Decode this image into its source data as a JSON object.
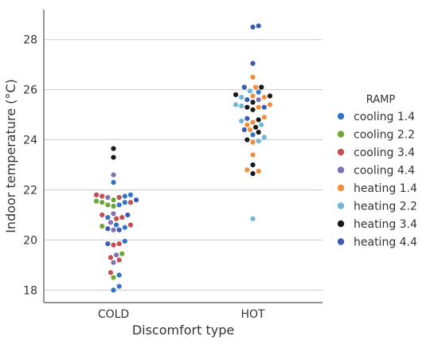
{
  "chart_data": {
    "type": "scatter",
    "subtype": "swarm",
    "title": "",
    "xlabel": "Discomfort type",
    "ylabel": "Indoor temperature (°C)",
    "categories": [
      "COLD",
      "HOT"
    ],
    "ylim": [
      17.5,
      29.2
    ],
    "yticks": [
      18,
      20,
      22,
      24,
      26,
      28
    ],
    "grid": "horizontal",
    "legend": {
      "title": "RAMP",
      "placement": "right"
    },
    "series": [
      {
        "name": "cooling 1.4",
        "color": "#3274c7",
        "points": [
          {
            "x": "COLD",
            "y": 21.8
          },
          {
            "x": "COLD",
            "y": 21.75
          },
          {
            "x": "COLD",
            "y": 21.5
          },
          {
            "x": "COLD",
            "y": 21.4
          },
          {
            "x": "COLD",
            "y": 20.9
          },
          {
            "x": "COLD",
            "y": 20.6
          },
          {
            "x": "COLD",
            "y": 20.5
          },
          {
            "x": "COLD",
            "y": 19.95
          },
          {
            "x": "COLD",
            "y": 18.6
          },
          {
            "x": "COLD",
            "y": 18.15
          },
          {
            "x": "COLD",
            "y": 18.0
          },
          {
            "x": "COLD",
            "y": 22.3
          },
          {
            "x": "HOT",
            "y": 25.9
          },
          {
            "x": "HOT",
            "y": 24.2
          }
        ]
      },
      {
        "name": "cooling 2.2",
        "color": "#6fa535",
        "points": [
          {
            "x": "COLD",
            "y": 21.6
          },
          {
            "x": "COLD",
            "y": 21.55
          },
          {
            "x": "COLD",
            "y": 21.5
          },
          {
            "x": "COLD",
            "y": 21.4
          },
          {
            "x": "COLD",
            "y": 21.35
          },
          {
            "x": "COLD",
            "y": 20.55
          },
          {
            "x": "COLD",
            "y": 19.45
          },
          {
            "x": "COLD",
            "y": 18.5
          }
        ]
      },
      {
        "name": "cooling 3.4",
        "color": "#c44e52",
        "points": [
          {
            "x": "COLD",
            "y": 21.8
          },
          {
            "x": "COLD",
            "y": 21.75
          },
          {
            "x": "COLD",
            "y": 21.7
          },
          {
            "x": "COLD",
            "y": 21.5
          },
          {
            "x": "COLD",
            "y": 21.0
          },
          {
            "x": "COLD",
            "y": 20.9
          },
          {
            "x": "COLD",
            "y": 20.85
          },
          {
            "x": "COLD",
            "y": 20.6
          },
          {
            "x": "COLD",
            "y": 19.85
          },
          {
            "x": "COLD",
            "y": 19.8
          },
          {
            "x": "COLD",
            "y": 19.3
          },
          {
            "x": "COLD",
            "y": 19.2
          },
          {
            "x": "COLD",
            "y": 18.7
          }
        ]
      },
      {
        "name": "cooling 4.4",
        "color": "#8172b2",
        "points": [
          {
            "x": "COLD",
            "y": 22.6
          },
          {
            "x": "COLD",
            "y": 21.7
          },
          {
            "x": "COLD",
            "y": 21.05
          },
          {
            "x": "COLD",
            "y": 20.7
          },
          {
            "x": "COLD",
            "y": 20.4
          },
          {
            "x": "COLD",
            "y": 19.4
          },
          {
            "x": "COLD",
            "y": 19.1
          },
          {
            "x": "HOT",
            "y": 25.6
          }
        ]
      },
      {
        "name": "heating 1.4",
        "color": "#f28e3b",
        "points": [
          {
            "x": "HOT",
            "y": 26.5
          },
          {
            "x": "HOT",
            "y": 26.1
          },
          {
            "x": "HOT",
            "y": 25.75
          },
          {
            "x": "HOT",
            "y": 25.7
          },
          {
            "x": "HOT",
            "y": 25.4
          },
          {
            "x": "HOT",
            "y": 25.3
          },
          {
            "x": "HOT",
            "y": 24.9
          },
          {
            "x": "HOT",
            "y": 24.7
          },
          {
            "x": "HOT",
            "y": 24.6
          },
          {
            "x": "HOT",
            "y": 23.9
          },
          {
            "x": "HOT",
            "y": 23.4
          },
          {
            "x": "HOT",
            "y": 22.8
          },
          {
            "x": "HOT",
            "y": 22.75
          },
          {
            "x": "HOT",
            "y": 24.4
          }
        ]
      },
      {
        "name": "heating 2.2",
        "color": "#6fb6da",
        "points": [
          {
            "x": "HOT",
            "y": 25.95
          },
          {
            "x": "HOT",
            "y": 25.7
          },
          {
            "x": "HOT",
            "y": 25.4
          },
          {
            "x": "HOT",
            "y": 25.35
          },
          {
            "x": "HOT",
            "y": 24.75
          },
          {
            "x": "HOT",
            "y": 24.6
          },
          {
            "x": "HOT",
            "y": 24.1
          },
          {
            "x": "HOT",
            "y": 23.95
          },
          {
            "x": "HOT",
            "y": 20.85
          }
        ]
      },
      {
        "name": "heating 3.4",
        "color": "#1a1a1a",
        "points": [
          {
            "x": "COLD",
            "y": 23.65
          },
          {
            "x": "COLD",
            "y": 23.3
          },
          {
            "x": "HOT",
            "y": 26.1
          },
          {
            "x": "HOT",
            "y": 25.8
          },
          {
            "x": "HOT",
            "y": 25.75
          },
          {
            "x": "HOT",
            "y": 25.5
          },
          {
            "x": "HOT",
            "y": 25.3
          },
          {
            "x": "HOT",
            "y": 25.2
          },
          {
            "x": "HOT",
            "y": 24.8
          },
          {
            "x": "HOT",
            "y": 24.5
          },
          {
            "x": "HOT",
            "y": 24.3
          },
          {
            "x": "HOT",
            "y": 24.0
          },
          {
            "x": "HOT",
            "y": 23.0
          },
          {
            "x": "HOT",
            "y": 22.65
          }
        ]
      },
      {
        "name": "heating 4.4",
        "color": "#3b5bb0",
        "points": [
          {
            "x": "COLD",
            "y": 21.6
          },
          {
            "x": "COLD",
            "y": 21.0
          },
          {
            "x": "COLD",
            "y": 20.45
          },
          {
            "x": "COLD",
            "y": 20.4
          },
          {
            "x": "COLD",
            "y": 19.85
          },
          {
            "x": "HOT",
            "y": 28.55
          },
          {
            "x": "HOT",
            "y": 28.5
          },
          {
            "x": "HOT",
            "y": 27.05
          },
          {
            "x": "HOT",
            "y": 26.1
          },
          {
            "x": "HOT",
            "y": 25.6
          },
          {
            "x": "HOT",
            "y": 25.3
          },
          {
            "x": "HOT",
            "y": 24.85
          },
          {
            "x": "HOT",
            "y": 24.4
          }
        ]
      }
    ]
  }
}
